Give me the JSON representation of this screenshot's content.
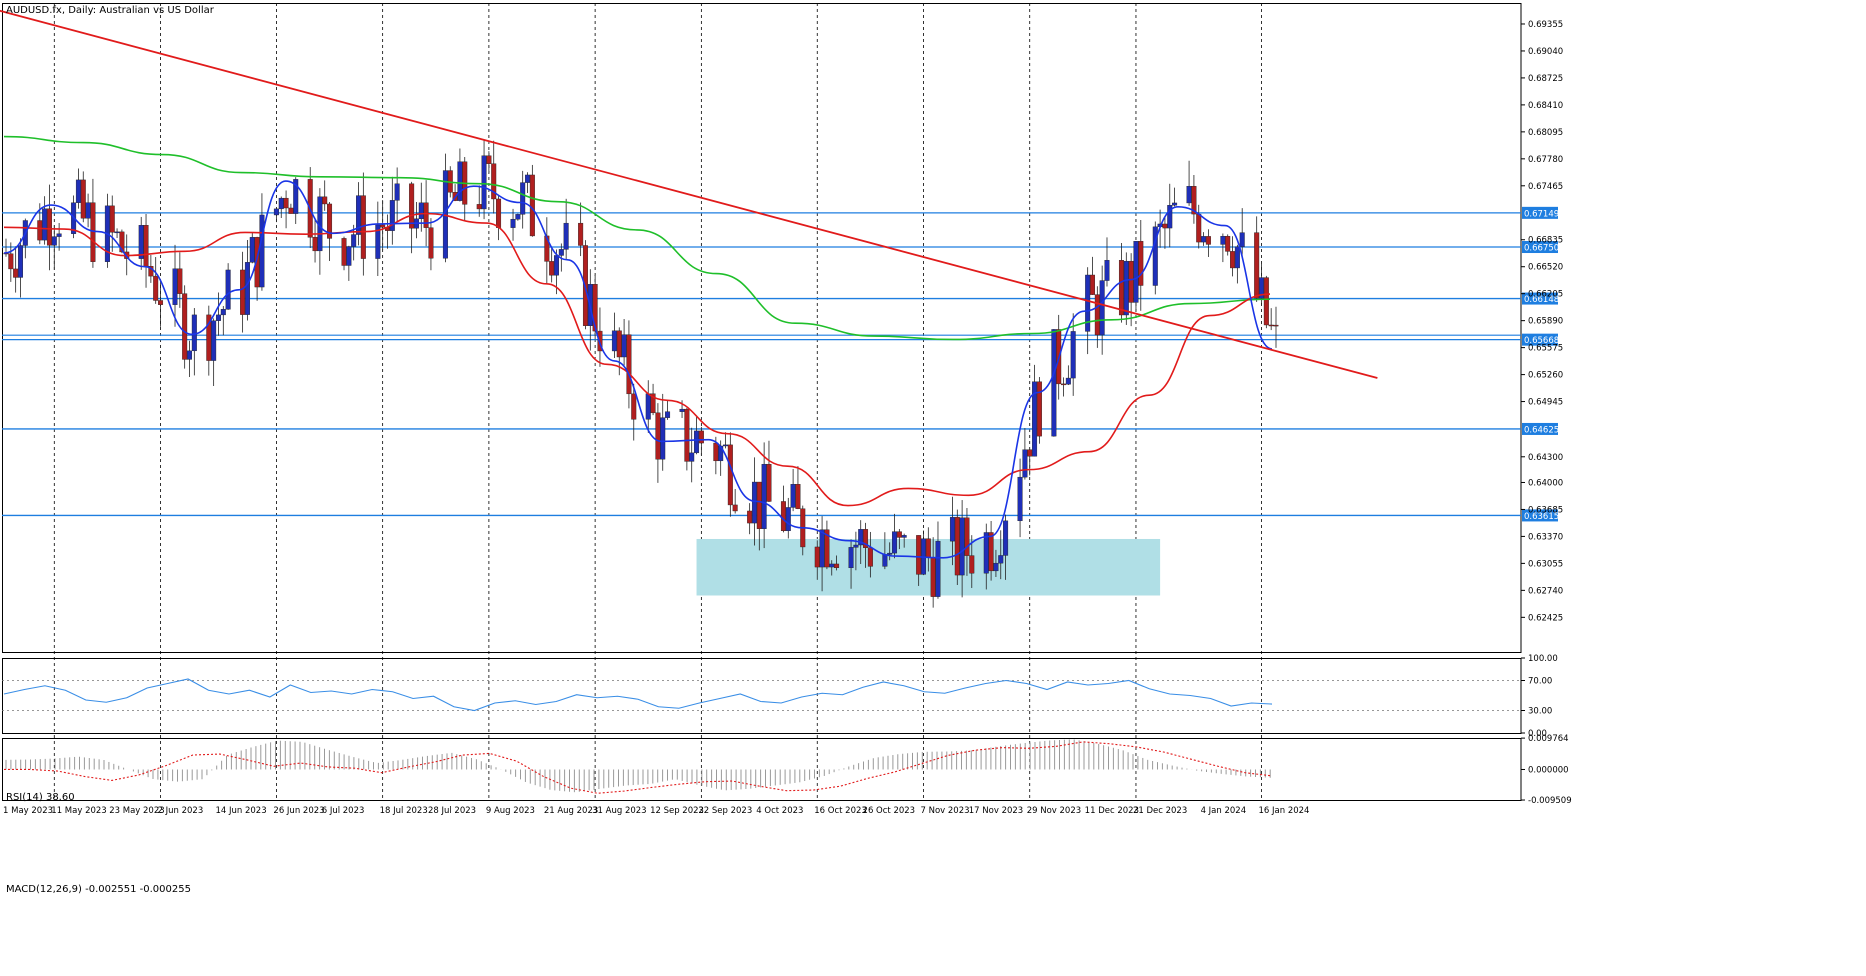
{
  "header": {
    "title": "AUDUSD.fx, Daily:  Australian vs US Dollar"
  },
  "indicators": {
    "rsi_label": "RSI(14) 38.60",
    "macd_label": "MACD(12,26,9) -0.002551 -0.000255"
  },
  "colors": {
    "bull": "#1f2fb8",
    "bear": "#b01f1f",
    "ma_fast": "#1a35e6",
    "ma_mid": "#e11b1b",
    "ma_slow": "#1fbf2a",
    "trendline": "#e11b1b",
    "hline": "#1e7ee0",
    "zone": "#b0dfe6",
    "rsi": "#3a8ee6",
    "macd_signal": "#e11b1b",
    "macd_hist": "#9a9a9a"
  },
  "chart_data": [
    {
      "type": "candlestick",
      "title": "AUDUSD.fx, Daily:  Australian vs US Dollar",
      "x_ticks": [
        "1 May 2023",
        "11 May 2023",
        "23 May 2023",
        "2 Jun 2023",
        "14 Jun 2023",
        "26 Jun 2023",
        "6 Jul 2023",
        "18 Jul 2023",
        "28 Jul 2023",
        "9 Aug 2023",
        "21 Aug 2023",
        "31 Aug 2023",
        "12 Sep 2023",
        "22 Sep 2023",
        "4 Oct 2023",
        "16 Oct 2023",
        "26 Oct 2023",
        "7 Nov 2023",
        "17 Nov 2023",
        "29 Nov 2023",
        "11 Dec 2023",
        "21 Dec 2023",
        "4 Jan 2024",
        "16 Jan 2024"
      ],
      "y_ticks": [
        "0.69355",
        "0.69040",
        "0.68725",
        "0.68410",
        "0.68095",
        "0.67780",
        "0.67465",
        "0.66835",
        "0.66520",
        "0.66205",
        "0.65890",
        "0.65575",
        "0.65260",
        "0.64945",
        "0.64300",
        "0.64000",
        "0.63685",
        "0.63370",
        "0.63055",
        "0.62740",
        "0.62425"
      ],
      "ylim": [
        0.6202,
        0.696
      ],
      "horizontal_levels": [
        "0.67149",
        "0.66750",
        "0.66148",
        "0.65668",
        "0.64625",
        "0.63615"
      ],
      "unlabeled_level": 0.6572,
      "trendline": {
        "from": {
          "date": "27 Apr 2023",
          "price": 0.6955
        },
        "to": {
          "date": "9 Feb 2024",
          "price": 0.6522
        }
      },
      "support_zone": {
        "from": "21 Sep 2023",
        "to": "26 Dec 2023",
        "low": 0.6268,
        "high": 0.6334
      },
      "ma_fast": [
        0.6668,
        0.6724,
        0.6693,
        0.6652,
        0.6573,
        0.6625,
        0.6752,
        0.6691,
        0.6702,
        0.6703,
        0.6746,
        0.6727,
        0.666,
        0.6542,
        0.6448,
        0.645,
        0.6378,
        0.6347,
        0.6332,
        0.6314,
        0.6312,
        0.6337,
        0.6505,
        0.66,
        0.6637,
        0.6722,
        0.67,
        0.6556
      ],
      "ma_mid": [
        0.6698,
        0.6696,
        0.6665,
        0.667,
        0.6692,
        0.669,
        0.6693,
        0.6714,
        0.6703,
        0.6632,
        0.6538,
        0.6496,
        0.6457,
        0.6419,
        0.6373,
        0.6393,
        0.6385,
        0.6415,
        0.6436,
        0.6502,
        0.6595,
        0.662
      ],
      "ma_slow": [
        0.6804,
        0.6797,
        0.6783,
        0.6762,
        0.6757,
        0.6756,
        0.6749,
        0.6728,
        0.6695,
        0.6644,
        0.6586,
        0.6571,
        0.6567,
        0.6574,
        0.659,
        0.6609,
        0.6614
      ]
    },
    {
      "type": "line",
      "title": "RSI(14) 38.60",
      "y_ticks": [
        "100.00",
        "70.00",
        "30.00",
        "0.00"
      ],
      "ylim": [
        0,
        100
      ],
      "levels": [
        30,
        70
      ],
      "values": [
        52,
        58,
        63,
        57,
        44,
        41,
        47,
        60,
        66,
        72,
        57,
        52,
        57,
        48,
        64,
        54,
        56,
        52,
        58,
        55,
        46,
        49,
        35,
        30,
        40,
        43,
        38,
        42,
        51,
        47,
        49,
        45,
        35,
        33,
        40,
        46,
        52,
        42,
        40,
        48,
        53,
        51,
        61,
        68,
        63,
        55,
        53,
        60,
        66,
        70,
        66,
        58,
        68,
        64,
        66,
        70,
        59,
        52,
        50,
        46,
        36,
        40,
        38.6
      ]
    },
    {
      "type": "bar",
      "title": "MACD(12,26,9) -0.002551 -0.000255",
      "y_ticks": [
        "0.009764",
        "0.000000",
        "-0.009509"
      ],
      "ylim": [
        -0.0095,
        0.0098
      ],
      "signal": [
        0.0,
        0.0,
        -0.0005,
        -0.0022,
        -0.0034,
        -0.0017,
        0.0012,
        0.0045,
        0.0048,
        0.003,
        0.001,
        0.002,
        0.0008,
        0.0004,
        -0.001,
        0.0008,
        0.0024,
        0.0045,
        0.005,
        0.0026,
        -0.0022,
        -0.0058,
        -0.0074,
        -0.0067,
        -0.0056,
        -0.0046,
        -0.0038,
        -0.0036,
        -0.0052,
        -0.0066,
        -0.0064,
        -0.0052,
        -0.0028,
        -0.0008,
        0.0018,
        0.0044,
        0.006,
        0.0068,
        0.0066,
        0.0072,
        0.0086,
        0.008,
        0.007,
        0.0054,
        0.0032,
        0.001,
        -0.001,
        -0.002
      ],
      "histogram_envelope": [
        0.003,
        0.0031,
        0.0034,
        0.004,
        0.003,
        0.0,
        -0.003,
        -0.0038,
        -0.003,
        0.0046,
        0.007,
        0.009,
        0.0086,
        0.0062,
        0.004,
        0.002,
        0.003,
        0.0042,
        0.0052,
        0.0032,
        0.0,
        -0.004,
        -0.0064,
        -0.0071,
        -0.006,
        -0.005,
        -0.0045,
        -0.003,
        -0.005,
        -0.0065,
        -0.006,
        -0.005,
        -0.004,
        -0.002,
        0.001,
        0.0036,
        0.0048,
        0.0055,
        0.0056,
        0.006,
        0.0072,
        0.0082,
        0.009,
        0.0094,
        0.008,
        0.006,
        0.003,
        0.0012,
        -0.0004,
        -0.0014,
        -0.0022,
        -0.0026
      ]
    }
  ]
}
